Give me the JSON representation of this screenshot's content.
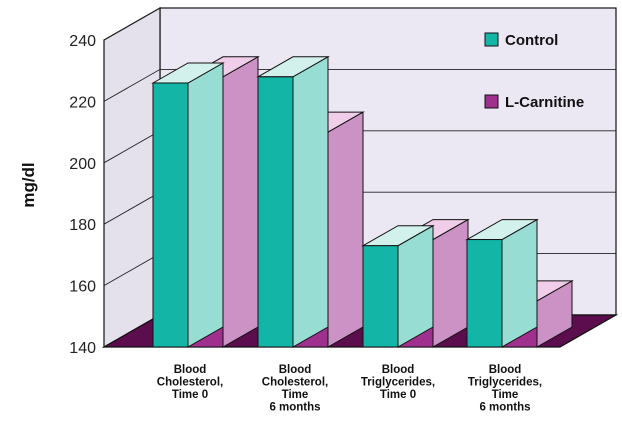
{
  "chart_data": {
    "type": "bar",
    "ylabel": "mg/dl",
    "ylim": [
      140,
      240
    ],
    "yticks": [
      140,
      160,
      180,
      200,
      220,
      240
    ],
    "categories": [
      [
        "Blood",
        "Cholesterol,",
        "Time 0"
      ],
      [
        "Blood",
        "Cholesterol,",
        "Time",
        "6 months"
      ],
      [
        "Blood",
        "Triglycerides,",
        "Time 0"
      ],
      [
        "Blood",
        "Triglycerides,",
        "Time",
        "6 months"
      ]
    ],
    "series": [
      {
        "name": "Control",
        "color": "#13b5a6",
        "values": [
          226,
          228,
          173,
          175
        ]
      },
      {
        "name": "L-Carnitine",
        "color": "#a0308e",
        "values": [
          228,
          210,
          175,
          155
        ]
      }
    ],
    "legend": "top-right",
    "style": "3d",
    "grid": true
  }
}
